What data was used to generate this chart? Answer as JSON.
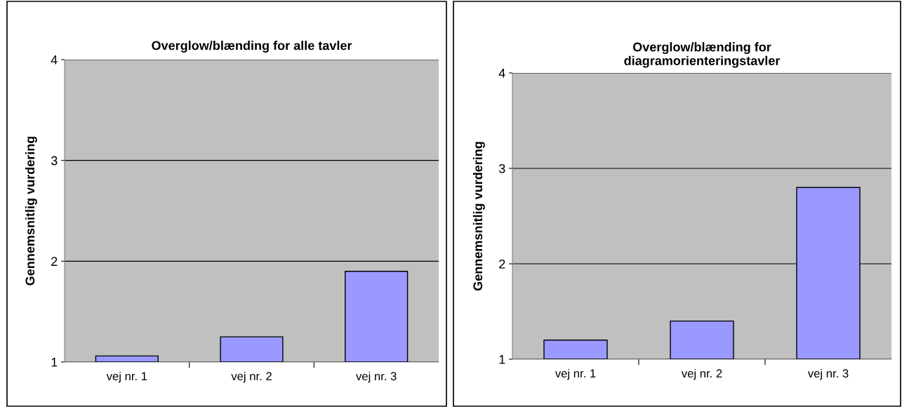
{
  "chart_data": [
    {
      "type": "bar",
      "title": "Overglow/blænding for alle tavler",
      "ylabel": "Gennemsnitlig vurdering",
      "categories": [
        "vej nr. 1",
        "vej nr. 2",
        "vej nr. 3"
      ],
      "values": [
        1.06,
        1.25,
        1.9
      ],
      "color": "#9999ff",
      "ylim": [
        1,
        4
      ],
      "yticks": [
        1,
        2,
        3,
        4
      ],
      "grid": "y",
      "legend": false
    },
    {
      "type": "bar",
      "title": "Overglow/blænding for diagramorienteringstavler",
      "ylabel": "Gennemsnitlig vurdering",
      "categories": [
        "vej nr. 1",
        "vej nr. 2",
        "vej nr. 3"
      ],
      "values": [
        1.2,
        1.4,
        2.8
      ],
      "color": "#9999ff",
      "ylim": [
        1,
        4
      ],
      "yticks": [
        1,
        2,
        3,
        4
      ],
      "grid": "y",
      "legend": false
    }
  ]
}
